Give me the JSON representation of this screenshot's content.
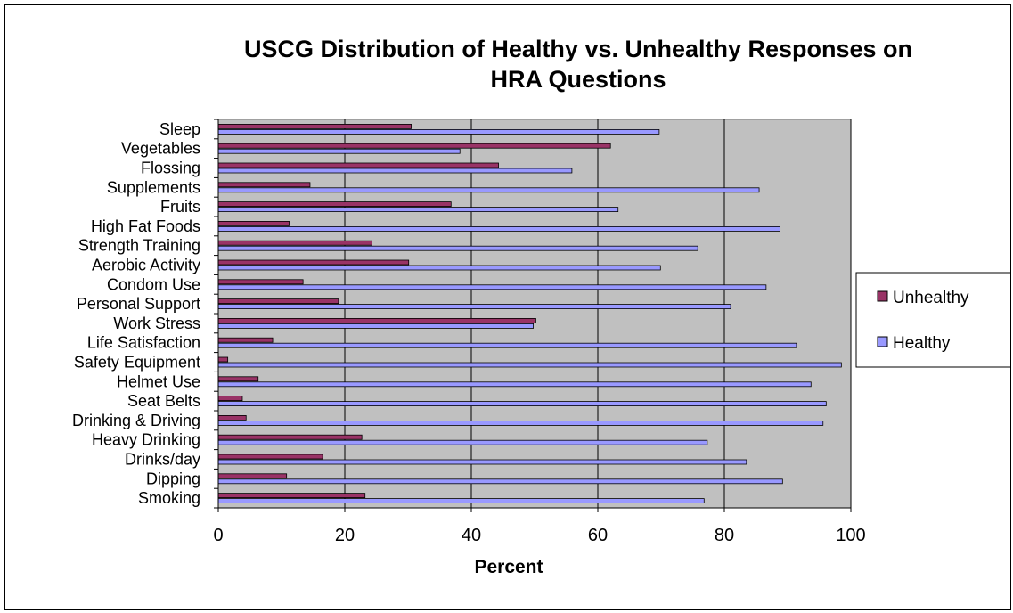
{
  "chart_data": {
    "type": "bar",
    "orientation": "horizontal",
    "title": "USCG Distribution of Healthy vs. Unhealthy Responses on HRA Questions",
    "title_lines": [
      "USCG Distribution of Healthy vs. Unhealthy Responses on",
      "HRA Questions"
    ],
    "xlabel": "Percent",
    "ylabel": "",
    "xlim": [
      0,
      100
    ],
    "xticks": [
      0,
      20,
      40,
      60,
      80,
      100
    ],
    "grid": "vertical major gridlines",
    "plot_background": "#c0c0c0",
    "legend_position": "right",
    "categories": [
      "Sleep",
      "Vegetables",
      "Flossing",
      "Supplements",
      "Fruits",
      "High Fat Foods",
      "Strength Training",
      "Aerobic Activity",
      "Condom Use",
      "Personal Support",
      "Work Stress",
      "Life Satisfaction",
      "Safety Equipment",
      "Helmet Use",
      "Seat Belts",
      "Drinking & Driving",
      "Heavy Drinking",
      "Drinks/day",
      "Dipping",
      "Smoking"
    ],
    "series": [
      {
        "name": "Unhealthy",
        "color": "#993366",
        "values": [
          30.5,
          62,
          44.3,
          14.5,
          36.8,
          11.2,
          24.3,
          30.1,
          13.4,
          19,
          50.2,
          8.6,
          1.5,
          6.3,
          3.8,
          4.4,
          22.7,
          16.5,
          10.8,
          23.2
        ]
      },
      {
        "name": "Healthy",
        "color": "#9999ff",
        "values": [
          69.7,
          38.2,
          55.9,
          85.5,
          63.2,
          88.8,
          75.8,
          69.9,
          86.6,
          81,
          49.8,
          91.4,
          98.5,
          93.7,
          96.1,
          95.6,
          77.3,
          83.5,
          89.2,
          76.8
        ]
      }
    ]
  }
}
